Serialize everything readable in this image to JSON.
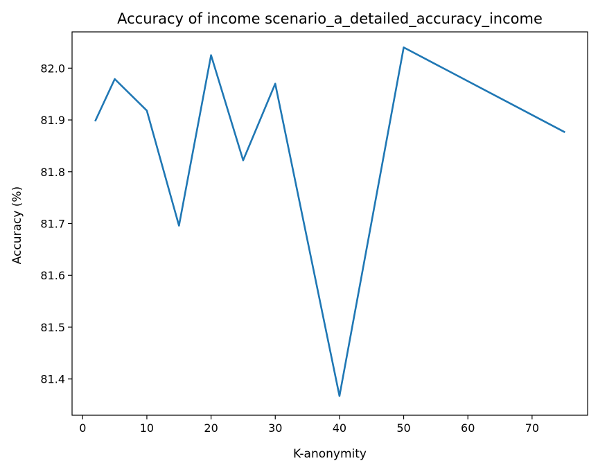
{
  "chart_data": {
    "type": "line",
    "title": "Accuracy of income scenario_a_detailed_accuracy_income",
    "xlabel": "K-anonymity",
    "ylabel": "Accuracy (%)",
    "xlim": [
      -1.65,
      78.65
    ],
    "ylim": [
      81.33,
      82.07
    ],
    "xticks": [
      0,
      10,
      20,
      30,
      40,
      50,
      60,
      70
    ],
    "yticks": [
      81.4,
      81.5,
      81.6,
      81.7,
      81.8,
      81.9,
      82.0
    ],
    "xtick_labels": [
      "0",
      "10",
      "20",
      "30",
      "40",
      "50",
      "60",
      "70"
    ],
    "ytick_labels": [
      "81.4",
      "81.5",
      "81.6",
      "81.7",
      "81.8",
      "81.9",
      "82.0"
    ],
    "grid": false,
    "series": [
      {
        "color": "#1f77b4",
        "x": [
          2,
          5,
          10,
          15,
          20,
          25,
          30,
          40,
          50,
          75
        ],
        "y": [
          81.899,
          81.979,
          81.918,
          81.696,
          82.025,
          81.822,
          81.97,
          81.367,
          82.04,
          81.877
        ]
      }
    ]
  }
}
